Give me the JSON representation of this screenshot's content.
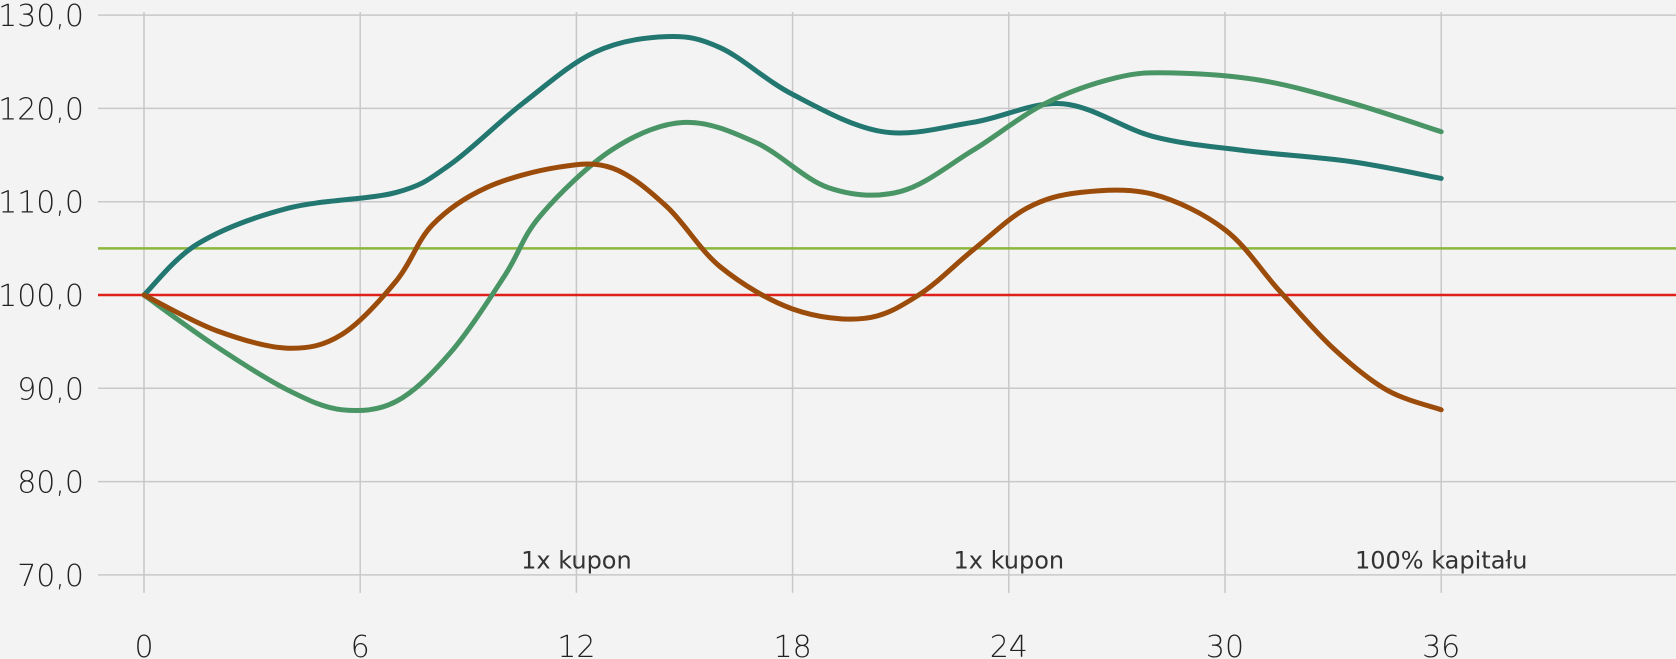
{
  "chart_data": {
    "type": "line",
    "title": "",
    "xlabel": "",
    "ylabel": "",
    "xlim": [
      0,
      42
    ],
    "ylim": [
      70,
      130
    ],
    "x_ticks": [
      0,
      6,
      12,
      18,
      24,
      30,
      36
    ],
    "x_tick_labels": [
      "0",
      "6",
      "12",
      "18",
      "24",
      "30",
      "36"
    ],
    "y_ticks": [
      70,
      80,
      90,
      100,
      110,
      120,
      130
    ],
    "y_tick_labels": [
      "70,0",
      "80,0",
      "90,0",
      "100,0",
      "110,0",
      "120,0",
      "130,0"
    ],
    "grid": true,
    "reference_lines": [
      {
        "y": 105,
        "color": "#8db63c"
      },
      {
        "y": 100,
        "color": "#e0211a"
      }
    ],
    "series": [
      {
        "color": "#237771",
        "x": [
          0,
          1.5,
          4,
          7,
          8.5,
          10.5,
          12.5,
          14.5,
          16,
          18,
          20.5,
          23,
          25.5,
          28,
          30.5,
          33.5,
          36
        ],
        "y": [
          100,
          105.5,
          109.3,
          111,
          114,
          120.5,
          126,
          127.7,
          126.5,
          121.5,
          117.5,
          118.5,
          120.5,
          117,
          115.5,
          114.3,
          112.5
        ]
      },
      {
        "color": "#4a9565",
        "x": [
          0,
          2,
          4,
          5.5,
          7,
          8.5,
          10,
          11,
          13,
          15,
          17,
          19,
          21,
          23,
          25,
          27,
          28.5,
          31,
          33.5,
          36
        ],
        "y": [
          100,
          94.5,
          89.8,
          87.7,
          88.6,
          93.8,
          102,
          108.5,
          115.6,
          118.5,
          116.3,
          111.5,
          111.1,
          115.5,
          120.5,
          123.3,
          123.8,
          123,
          120.6,
          117.5
        ]
      },
      {
        "color": "#9b4c0a",
        "x": [
          0,
          2,
          4,
          5.5,
          7,
          8,
          9.5,
          11.5,
          13,
          14.5,
          16,
          18,
          20,
          21.5,
          23,
          24.5,
          26,
          28,
          30,
          31.5,
          33,
          34.5,
          36
        ],
        "y": [
          100,
          96.2,
          94.3,
          95.8,
          101.5,
          107.5,
          111.5,
          113.7,
          113.6,
          109.5,
          103,
          98.5,
          97.5,
          100,
          104.8,
          109.3,
          111,
          110.8,
          107,
          100.5,
          94.3,
          89.8,
          87.7
        ]
      }
    ],
    "annotations": [
      {
        "text": "1x kupon",
        "x": 12,
        "y": 75
      },
      {
        "text": "1x kupon",
        "x": 24,
        "y": 75
      },
      {
        "text": "100% kapitału",
        "x": 36,
        "y": 75
      }
    ]
  }
}
